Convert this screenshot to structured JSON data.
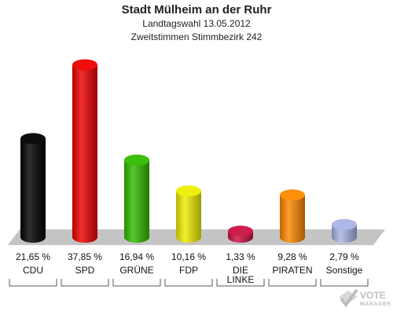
{
  "chart_data": {
    "type": "bar",
    "title": "Stadt Mülheim an der Ruhr",
    "subtitle_lines": [
      "Landtagswahl 13.05.2012",
      "Zweitstimmen Stimmbezirk 242"
    ],
    "categories": [
      "CDU",
      "SPD",
      "GRÜNE",
      "FDP",
      "DIE LINKE",
      "PIRATEN",
      "Sonstige"
    ],
    "values": [
      21.65,
      37.85,
      16.94,
      10.16,
      1.33,
      9.28,
      2.79
    ],
    "value_labels": [
      "21,65 %",
      "37,85 %",
      "16,94 %",
      "10,16 %",
      "1,33 %",
      "9,28 %",
      "2,79 %"
    ],
    "colors": [
      "#000000",
      "#ee0000",
      "#33bb00",
      "#eeee00",
      "#cc1144",
      "#ff8800",
      "#aab4e6"
    ],
    "ylim": [
      0,
      40
    ],
    "grid": false,
    "legend": "none"
  },
  "watermark": {
    "line1": "VOTE",
    "line2": "MANAGER"
  }
}
